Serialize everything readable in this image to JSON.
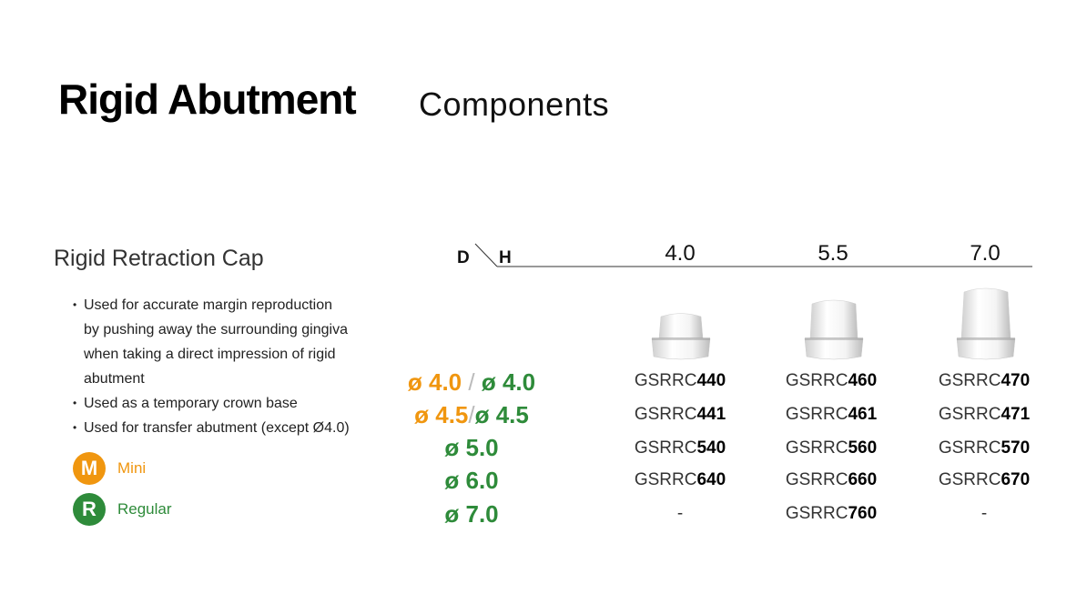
{
  "title": {
    "main": "Rigid Abutment",
    "sub": "Components"
  },
  "section": {
    "title": "Rigid Retraction Cap",
    "bullets": [
      "Used for accurate margin reproduction",
      "by pushing away the surrounding gingiva",
      "when taking a direct impression of rigid",
      "abutment",
      "Used as a temporary crown base",
      "Used for transfer abutment (except Ø4.0)"
    ]
  },
  "legend": [
    {
      "letter": "M",
      "label": "Mini",
      "color": "#f0960f"
    },
    {
      "letter": "R",
      "label": "Regular",
      "color": "#2e8b3a"
    }
  ],
  "table": {
    "header_d": "D",
    "header_h": "H",
    "heights": [
      "4.0",
      "5.5",
      "7.0"
    ],
    "rows": [
      {
        "mini": "ø 4.0",
        "sep": "/",
        "regular": "ø 4.0",
        "codes": [
          [
            "GSRRC",
            "440"
          ],
          [
            "GSRRC",
            "460"
          ],
          [
            "GSRRC",
            "470"
          ]
        ]
      },
      {
        "mini": "ø 4.5",
        "sep": "/",
        "regular": "ø 4.5",
        "codes": [
          [
            "GSRRC",
            "441"
          ],
          [
            "GSRRC",
            "461"
          ],
          [
            "GSRRC",
            "471"
          ]
        ]
      },
      {
        "mini": "",
        "sep": "",
        "regular": "ø 5.0",
        "codes": [
          [
            "GSRRC",
            "540"
          ],
          [
            "GSRRC",
            "560"
          ],
          [
            "GSRRC",
            "570"
          ]
        ]
      },
      {
        "mini": "",
        "sep": "",
        "regular": "ø 6.0",
        "codes": [
          [
            "GSRRC",
            "640"
          ],
          [
            "GSRRC",
            "660"
          ],
          [
            "GSRRC",
            "670"
          ]
        ]
      },
      {
        "mini": "",
        "sep": "",
        "regular": "ø 7.0",
        "codes": [
          [
            "",
            "-"
          ],
          [
            "GSRRC",
            "760"
          ],
          [
            "",
            "-"
          ]
        ]
      }
    ]
  },
  "colors": {
    "mini": "#f0960f",
    "regular": "#2e8b3a"
  }
}
